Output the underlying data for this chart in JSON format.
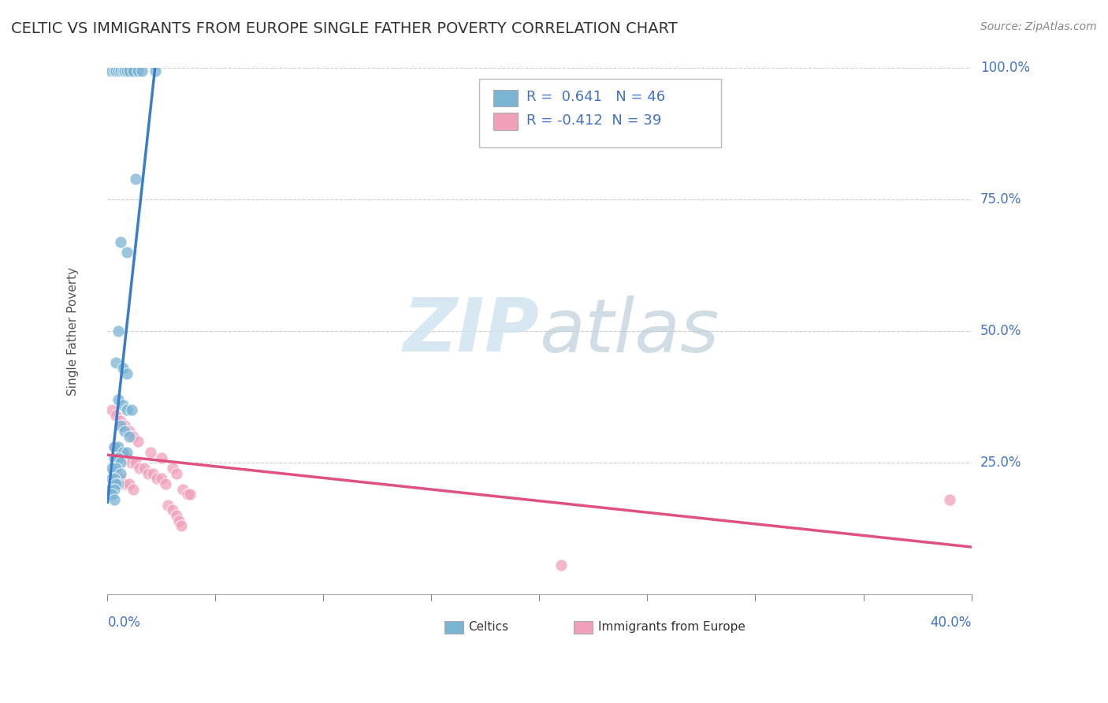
{
  "title": "CELTIC VS IMMIGRANTS FROM EUROPE SINGLE FATHER POVERTY CORRELATION CHART",
  "source": "Source: ZipAtlas.com",
  "ylabel": "Single Father Poverty",
  "r_celtic": 0.641,
  "n_celtic": 46,
  "r_immigrants": -0.412,
  "n_immigrants": 39,
  "blue_color": "#92c5de",
  "pink_color": "#f4a582",
  "blue_scatter_color": "#7ab4d3",
  "pink_scatter_color": "#f0a0b8",
  "blue_line_color": "#3a7dc9",
  "pink_line_color": "#e05080",
  "watermark_color": "#d0e4f0",
  "blue_scatter": [
    [
      0.001,
      0.995
    ],
    [
      0.002,
      0.995
    ],
    [
      0.003,
      0.995
    ],
    [
      0.004,
      0.995
    ],
    [
      0.005,
      0.995
    ],
    [
      0.006,
      0.995
    ],
    [
      0.007,
      0.995
    ],
    [
      0.008,
      0.995
    ],
    [
      0.009,
      0.995
    ],
    [
      0.01,
      0.995
    ],
    [
      0.012,
      0.995
    ],
    [
      0.014,
      0.995
    ],
    [
      0.016,
      0.995
    ],
    [
      0.022,
      0.995
    ],
    [
      0.013,
      0.79
    ],
    [
      0.006,
      0.67
    ],
    [
      0.009,
      0.65
    ],
    [
      0.005,
      0.5
    ],
    [
      0.004,
      0.44
    ],
    [
      0.007,
      0.43
    ],
    [
      0.009,
      0.42
    ],
    [
      0.005,
      0.37
    ],
    [
      0.007,
      0.36
    ],
    [
      0.009,
      0.35
    ],
    [
      0.011,
      0.35
    ],
    [
      0.006,
      0.32
    ],
    [
      0.008,
      0.31
    ],
    [
      0.01,
      0.3
    ],
    [
      0.003,
      0.28
    ],
    [
      0.005,
      0.28
    ],
    [
      0.007,
      0.27
    ],
    [
      0.009,
      0.27
    ],
    [
      0.003,
      0.26
    ],
    [
      0.005,
      0.26
    ],
    [
      0.006,
      0.25
    ],
    [
      0.002,
      0.24
    ],
    [
      0.004,
      0.24
    ],
    [
      0.006,
      0.23
    ],
    [
      0.002,
      0.22
    ],
    [
      0.003,
      0.22
    ],
    [
      0.005,
      0.21
    ],
    [
      0.004,
      0.21
    ],
    [
      0.001,
      0.2
    ],
    [
      0.003,
      0.2
    ],
    [
      0.002,
      0.19
    ],
    [
      0.003,
      0.18
    ]
  ],
  "pink_scatter": [
    [
      0.002,
      0.35
    ],
    [
      0.004,
      0.34
    ],
    [
      0.006,
      0.33
    ],
    [
      0.008,
      0.32
    ],
    [
      0.01,
      0.31
    ],
    [
      0.012,
      0.3
    ],
    [
      0.014,
      0.29
    ],
    [
      0.003,
      0.28
    ],
    [
      0.005,
      0.27
    ],
    [
      0.007,
      0.27
    ],
    [
      0.009,
      0.26
    ],
    [
      0.011,
      0.25
    ],
    [
      0.013,
      0.25
    ],
    [
      0.015,
      0.24
    ],
    [
      0.017,
      0.24
    ],
    [
      0.019,
      0.23
    ],
    [
      0.021,
      0.23
    ],
    [
      0.023,
      0.22
    ],
    [
      0.025,
      0.22
    ],
    [
      0.027,
      0.21
    ],
    [
      0.004,
      0.22
    ],
    [
      0.006,
      0.22
    ],
    [
      0.008,
      0.21
    ],
    [
      0.01,
      0.21
    ],
    [
      0.012,
      0.2
    ],
    [
      0.02,
      0.27
    ],
    [
      0.025,
      0.26
    ],
    [
      0.03,
      0.24
    ],
    [
      0.032,
      0.23
    ],
    [
      0.035,
      0.2
    ],
    [
      0.037,
      0.19
    ],
    [
      0.038,
      0.19
    ],
    [
      0.028,
      0.17
    ],
    [
      0.03,
      0.16
    ],
    [
      0.032,
      0.15
    ],
    [
      0.033,
      0.14
    ],
    [
      0.034,
      0.13
    ],
    [
      0.39,
      0.18
    ],
    [
      0.21,
      0.055
    ]
  ],
  "blue_line": [
    [
      0.0,
      0.175
    ],
    [
      0.022,
      1.0
    ]
  ],
  "pink_line": [
    [
      0.0,
      0.265
    ],
    [
      0.4,
      0.09
    ]
  ],
  "xmin": 0.0,
  "xmax": 0.4,
  "ymin": 0.0,
  "ymax": 1.0,
  "background_color": "#ffffff",
  "grid_color": "#cccccc"
}
